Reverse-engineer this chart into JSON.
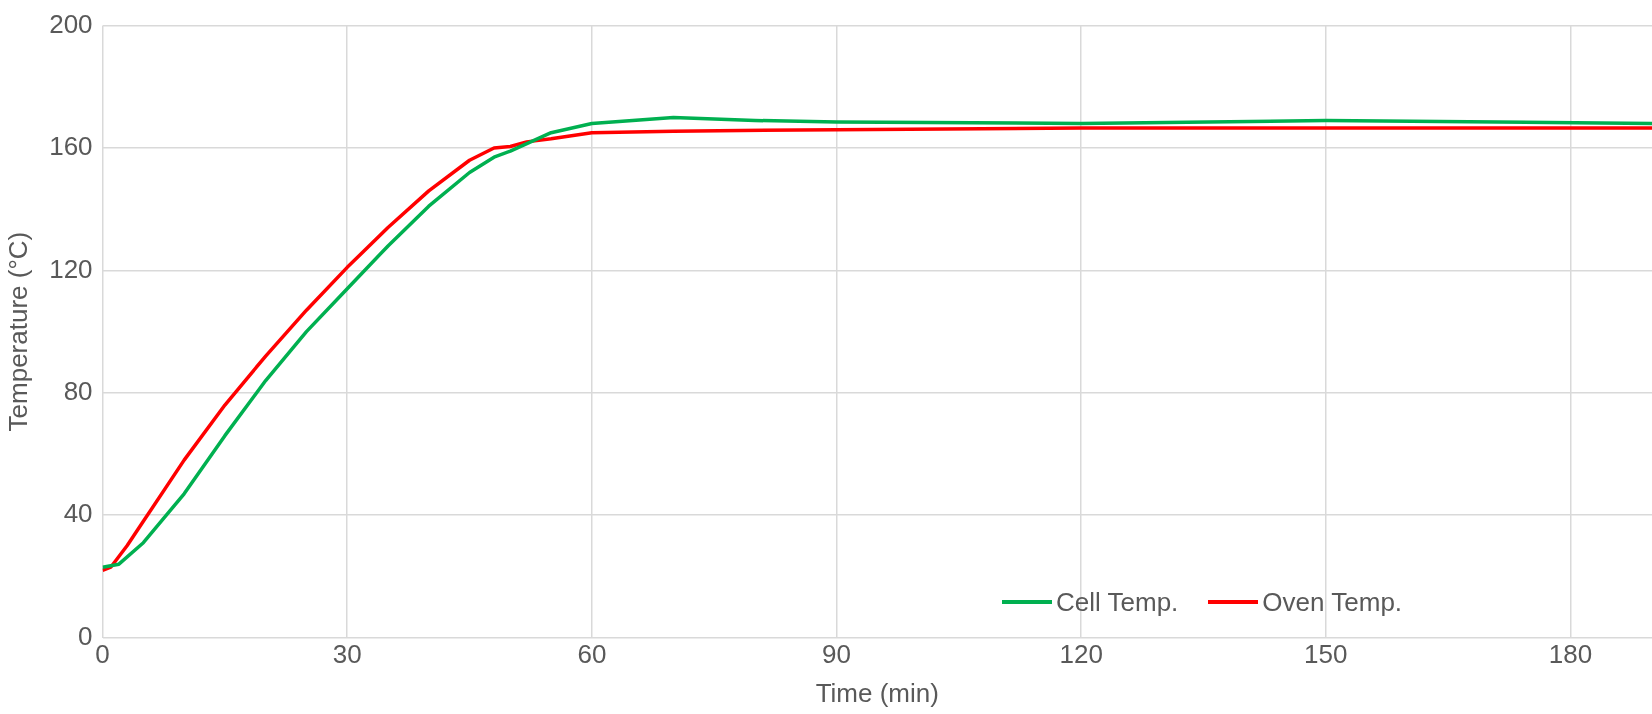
{
  "chart_data": {
    "type": "line",
    "xlabel": "Time (min)",
    "ylabel": "Temperature (°C)",
    "xlim": [
      0,
      190
    ],
    "xticks": [
      0,
      30,
      60,
      90,
      120,
      150,
      180
    ],
    "ylim": [
      0,
      200
    ],
    "yticks": [
      0,
      40,
      80,
      120,
      160,
      200
    ],
    "grid": true,
    "legend": "bottom right",
    "marker": "none",
    "line_style": "solid",
    "series": [
      {
        "name": "Cell Temp.",
        "color": "#00b050",
        "x": [
          0,
          2,
          5,
          10,
          15,
          20,
          25,
          30,
          35,
          40,
          45,
          48,
          50,
          55,
          60,
          65,
          70,
          80,
          90,
          120,
          150,
          190
        ],
        "values": [
          23,
          24,
          31,
          47,
          66,
          84,
          100,
          114,
          128,
          141,
          152,
          157,
          159,
          165,
          168,
          169,
          170,
          169,
          168.5,
          168,
          169,
          168
        ]
      },
      {
        "name": "Oven Temp.",
        "color": "#ff0000",
        "x": [
          0,
          1,
          3,
          5,
          10,
          15,
          20,
          25,
          30,
          35,
          40,
          45,
          48,
          50,
          52,
          55,
          60,
          70,
          90,
          120,
          190
        ],
        "values": [
          22,
          23,
          30,
          38,
          58,
          76,
          92,
          107,
          121,
          134,
          146,
          156,
          160,
          160.5,
          162,
          163,
          165,
          165.5,
          166,
          166.5,
          166.5
        ]
      }
    ]
  }
}
